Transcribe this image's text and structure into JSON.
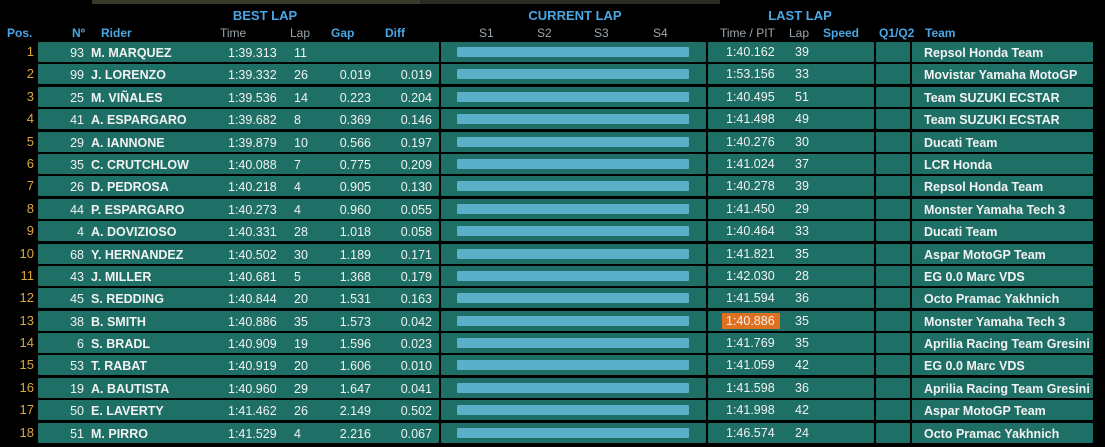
{
  "groups": {
    "best_lap": "BEST LAP",
    "current_lap": "CURRENT LAP",
    "last_lap": "LAST LAP"
  },
  "columns": {
    "pos": "Pos.",
    "num": "Nº",
    "rider": "Rider",
    "time": "Time",
    "lap": "Lap",
    "gap": "Gap",
    "diff": "Diff",
    "s1": "S1",
    "s2": "S2",
    "s3": "S3",
    "s4": "S4",
    "time_pit": "Time / PIT",
    "last_lap": "Lap",
    "speed": "Speed",
    "q1q2": "Q1/Q2",
    "team": "Team"
  },
  "colors": {
    "position": "#d9a93c",
    "header": "#4aa7e6",
    "row": "#1e6f66",
    "sector_bar": "#5ab0c8",
    "highlight": "#e0701f"
  },
  "rows": [
    {
      "pos": "1",
      "num": "93",
      "rider": "M. MARQUEZ",
      "time": "1:39.313",
      "lap": "11",
      "gap": "",
      "diff": "",
      "last_time": "1:40.162",
      "last_lap": "39",
      "team": "Repsol Honda Team"
    },
    {
      "pos": "2",
      "num": "99",
      "rider": "J. LORENZO",
      "time": "1:39.332",
      "lap": "26",
      "gap": "0.019",
      "diff": "0.019",
      "last_time": "1:53.156",
      "last_lap": "33",
      "team": "Movistar Yamaha MotoGP"
    },
    {
      "pos": "3",
      "num": "25",
      "rider": "M. VIÑALES",
      "time": "1:39.536",
      "lap": "14",
      "gap": "0.223",
      "diff": "0.204",
      "last_time": "1:40.495",
      "last_lap": "51",
      "team": "Team SUZUKI ECSTAR"
    },
    {
      "pos": "4",
      "num": "41",
      "rider": "A. ESPARGARO",
      "time": "1:39.682",
      "lap": "8",
      "gap": "0.369",
      "diff": "0.146",
      "last_time": "1:41.498",
      "last_lap": "49",
      "team": "Team SUZUKI ECSTAR"
    },
    {
      "pos": "5",
      "num": "29",
      "rider": "A. IANNONE",
      "time": "1:39.879",
      "lap": "10",
      "gap": "0.566",
      "diff": "0.197",
      "last_time": "1:40.276",
      "last_lap": "30",
      "team": "Ducati Team"
    },
    {
      "pos": "6",
      "num": "35",
      "rider": "C. CRUTCHLOW",
      "time": "1:40.088",
      "lap": "7",
      "gap": "0.775",
      "diff": "0.209",
      "last_time": "1:41.024",
      "last_lap": "37",
      "team": "LCR Honda"
    },
    {
      "pos": "7",
      "num": "26",
      "rider": "D. PEDROSA",
      "time": "1:40.218",
      "lap": "4",
      "gap": "0.905",
      "diff": "0.130",
      "last_time": "1:40.278",
      "last_lap": "39",
      "team": "Repsol Honda Team"
    },
    {
      "pos": "8",
      "num": "44",
      "rider": "P. ESPARGARO",
      "time": "1:40.273",
      "lap": "4",
      "gap": "0.960",
      "diff": "0.055",
      "last_time": "1:41.450",
      "last_lap": "29",
      "team": "Monster Yamaha Tech 3"
    },
    {
      "pos": "9",
      "num": "4",
      "rider": "A. DOVIZIOSO",
      "time": "1:40.331",
      "lap": "28",
      "gap": "1.018",
      "diff": "0.058",
      "last_time": "1:40.464",
      "last_lap": "33",
      "team": "Ducati Team"
    },
    {
      "pos": "10",
      "num": "68",
      "rider": "Y. HERNANDEZ",
      "time": "1:40.502",
      "lap": "30",
      "gap": "1.189",
      "diff": "0.171",
      "last_time": "1:41.821",
      "last_lap": "35",
      "team": "Aspar MotoGP Team"
    },
    {
      "pos": "11",
      "num": "43",
      "rider": "J. MILLER",
      "time": "1:40.681",
      "lap": "5",
      "gap": "1.368",
      "diff": "0.179",
      "last_time": "1:42.030",
      "last_lap": "28",
      "team": "EG 0.0 Marc VDS"
    },
    {
      "pos": "12",
      "num": "45",
      "rider": "S. REDDING",
      "time": "1:40.844",
      "lap": "20",
      "gap": "1.531",
      "diff": "0.163",
      "last_time": "1:41.594",
      "last_lap": "36",
      "team": "Octo Pramac Yakhnich"
    },
    {
      "pos": "13",
      "num": "38",
      "rider": "B. SMITH",
      "time": "1:40.886",
      "lap": "35",
      "gap": "1.573",
      "diff": "0.042",
      "last_time": "1:40.886",
      "last_lap": "35",
      "team": "Monster Yamaha Tech 3",
      "highlight": true
    },
    {
      "pos": "14",
      "num": "6",
      "rider": "S. BRADL",
      "time": "1:40.909",
      "lap": "19",
      "gap": "1.596",
      "diff": "0.023",
      "last_time": "1:41.769",
      "last_lap": "35",
      "team": "Aprilia Racing Team Gresini"
    },
    {
      "pos": "15",
      "num": "53",
      "rider": "T. RABAT",
      "time": "1:40.919",
      "lap": "20",
      "gap": "1.606",
      "diff": "0.010",
      "last_time": "1:41.059",
      "last_lap": "42",
      "team": "EG 0.0 Marc VDS"
    },
    {
      "pos": "16",
      "num": "19",
      "rider": "A. BAUTISTA",
      "time": "1:40.960",
      "lap": "29",
      "gap": "1.647",
      "diff": "0.041",
      "last_time": "1:41.598",
      "last_lap": "36",
      "team": "Aprilia Racing Team Gresini"
    },
    {
      "pos": "17",
      "num": "50",
      "rider": "E. LAVERTY",
      "time": "1:41.462",
      "lap": "26",
      "gap": "2.149",
      "diff": "0.502",
      "last_time": "1:41.998",
      "last_lap": "42",
      "team": "Aspar MotoGP Team"
    },
    {
      "pos": "18",
      "num": "51",
      "rider": "M. PIRRO",
      "time": "1:41.529",
      "lap": "4",
      "gap": "2.216",
      "diff": "0.067",
      "last_time": "1:46.574",
      "last_lap": "24",
      "team": "Octo Pramac Yakhnich"
    }
  ]
}
